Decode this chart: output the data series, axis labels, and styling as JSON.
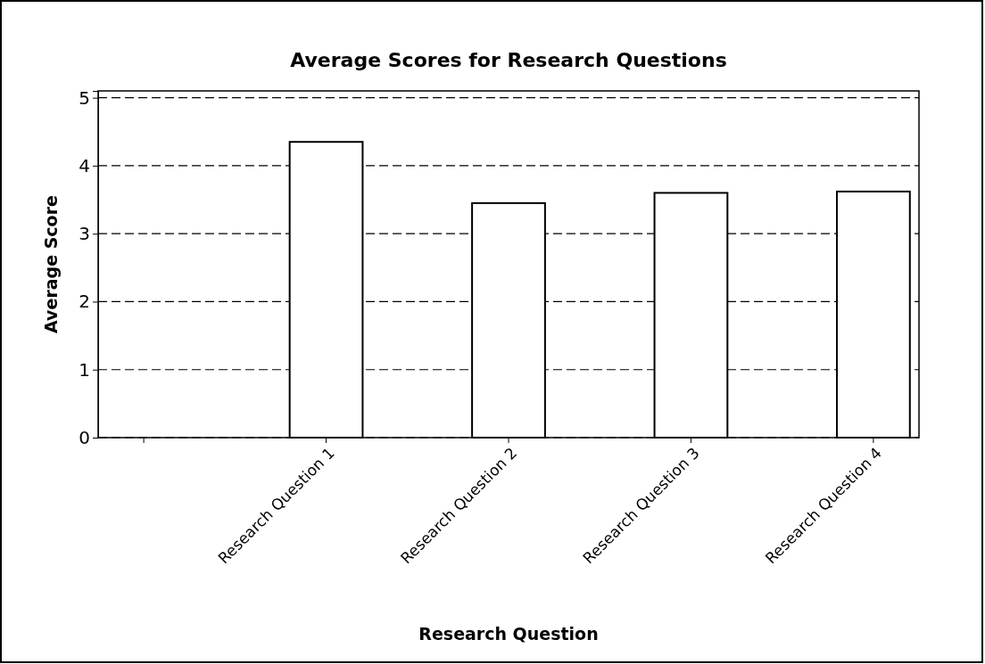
{
  "chart_data": {
    "type": "bar",
    "title": "Average Scores for Research Questions",
    "xlabel": "Research Question",
    "ylabel": "Average Score",
    "categories": [
      null,
      "Research Question 1",
      "Research Question 2",
      "Research Question 3",
      "Research Question 4"
    ],
    "values": [
      null,
      4.35,
      3.45,
      3.6,
      3.62
    ],
    "color": "#ffffff",
    "ylim": [
      0,
      5.1
    ],
    "yticks": [
      0,
      1,
      2,
      3,
      4,
      5
    ],
    "grid": "y",
    "line_style": "dashed"
  }
}
